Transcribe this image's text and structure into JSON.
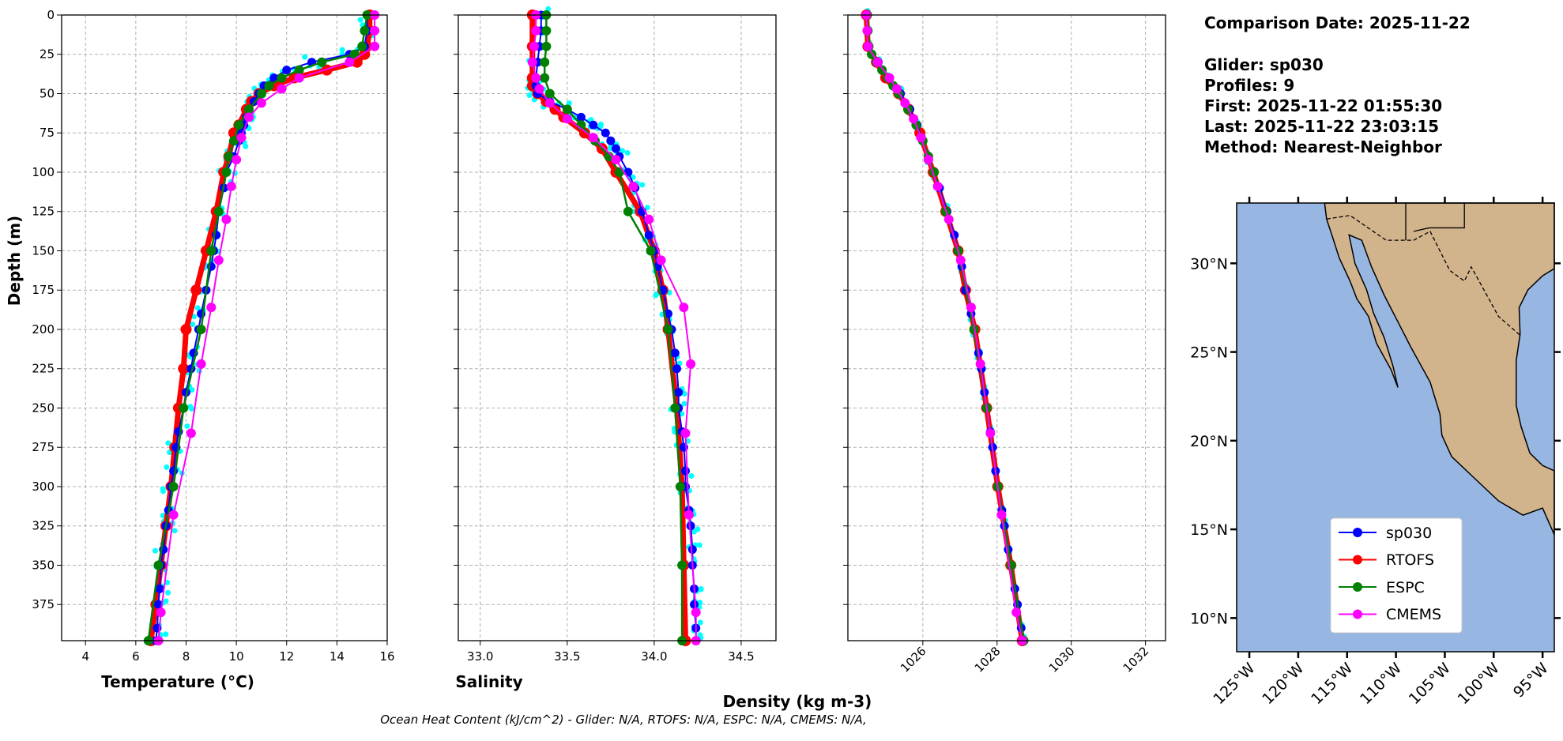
{
  "info": {
    "comparison_date": "Comparison Date: 2025-11-22",
    "glider": "Glider: sp030",
    "profiles": "Profiles: 9",
    "first": "First: 2025-11-22 01:55:30",
    "last": "Last: 2025-11-22 23:03:15",
    "method": "Method: Nearest-Neighbor"
  },
  "footer": "Ocean Heat Content (kJ/cm^2) - Glider: N/A,  RTOFS: N/A,  ESPC: N/A,  CMEMS: N/A,",
  "colors": {
    "sp030": "#0000ff",
    "RTOFS": "#ff0000",
    "ESPC": "#008000",
    "CMEMS": "#ff00ff",
    "raw": "#00ffff",
    "ocean": "#97b6e1",
    "land": "#d2b48c"
  },
  "legend": [
    "sp030",
    "RTOFS",
    "ESPC",
    "CMEMS"
  ],
  "map": {
    "lon_ticks": [
      "125°W",
      "120°W",
      "115°W",
      "110°W",
      "105°W",
      "100°W",
      "95°W"
    ],
    "lon_values": [
      -125,
      -120,
      -115,
      -110,
      -105,
      -100,
      -95
    ],
    "lat_ticks": [
      "30°N",
      "25°N",
      "20°N",
      "15°N",
      "10°N"
    ],
    "lat_values": [
      30,
      25,
      20,
      15,
      10
    ],
    "xlim": [
      -126.3,
      -93.8
    ],
    "ylim": [
      8.1,
      33.4
    ]
  },
  "chart_data": [
    {
      "type": "line",
      "xlabel": "Temperature (°C)",
      "ylabel": "Depth (m)",
      "xlim": [
        3.05,
        16.0
      ],
      "ylim": [
        398,
        0
      ],
      "xticks": [
        4,
        6,
        8,
        10,
        12,
        14,
        16
      ],
      "yticks": [
        0,
        25,
        50,
        75,
        100,
        125,
        150,
        175,
        200,
        225,
        250,
        275,
        300,
        325,
        350,
        375
      ],
      "grid": true,
      "series": [
        {
          "name": "sp030",
          "depth": [
            0,
            10,
            20,
            25,
            30,
            35,
            40,
            45,
            50,
            55,
            60,
            65,
            70,
            75,
            80,
            90,
            100,
            110,
            125,
            140,
            150,
            160,
            175,
            190,
            200,
            215,
            225,
            240,
            250,
            265,
            275,
            290,
            300,
            315,
            325,
            340,
            350,
            365,
            375,
            390,
            398
          ],
          "values": [
            15.2,
            15.2,
            15.1,
            14.5,
            13.0,
            12.0,
            11.5,
            11.1,
            10.9,
            10.7,
            10.5,
            10.4,
            10.3,
            10.2,
            10.1,
            9.9,
            9.6,
            9.5,
            9.3,
            9.2,
            9.1,
            9.0,
            8.8,
            8.6,
            8.5,
            8.3,
            8.2,
            8.0,
            7.9,
            7.7,
            7.6,
            7.5,
            7.4,
            7.3,
            7.2,
            7.1,
            7.0,
            6.95,
            6.9,
            6.85,
            6.8
          ]
        },
        {
          "name": "RTOFS",
          "depth": [
            0,
            10,
            20,
            25,
            30,
            35,
            40,
            45,
            50,
            55,
            60,
            70,
            75,
            90,
            100,
            125,
            150,
            175,
            200,
            225,
            250,
            275,
            300,
            325,
            350,
            375,
            398
          ],
          "values": [
            15.3,
            15.3,
            15.2,
            15.1,
            14.8,
            13.6,
            12.3,
            11.5,
            10.9,
            10.6,
            10.4,
            10.1,
            9.9,
            9.7,
            9.5,
            9.2,
            8.8,
            8.4,
            8.0,
            7.9,
            7.7,
            7.55,
            7.4,
            7.2,
            7.0,
            6.8,
            6.6
          ]
        },
        {
          "name": "ESPC",
          "depth": [
            0,
            10,
            20,
            25,
            30,
            35,
            40,
            45,
            50,
            60,
            70,
            80,
            90,
            100,
            125,
            150,
            200,
            250,
            300,
            350,
            398
          ],
          "values": [
            15.2,
            15.1,
            15.0,
            14.7,
            13.4,
            12.5,
            11.8,
            11.3,
            11.0,
            10.5,
            10.1,
            9.9,
            9.7,
            9.6,
            9.3,
            9.0,
            8.6,
            7.9,
            7.5,
            6.9,
            6.5
          ]
        },
        {
          "name": "CMEMS",
          "depth": [
            0,
            10,
            20,
            30,
            40,
            47,
            56,
            65,
            78,
            92,
            109,
            130,
            156,
            186,
            222,
            266,
            318,
            380,
            398
          ],
          "values": [
            15.5,
            15.5,
            15.5,
            14.5,
            12.5,
            11.8,
            11.0,
            10.5,
            10.2,
            10.0,
            9.8,
            9.6,
            9.3,
            9.0,
            8.6,
            8.2,
            7.5,
            7.0,
            6.9
          ]
        }
      ]
    },
    {
      "type": "line",
      "xlabel": "Salinity",
      "xlim": [
        32.874,
        34.7
      ],
      "ylim": [
        398,
        0
      ],
      "xticks": [
        33.0,
        33.5,
        34.0,
        34.5
      ],
      "grid": true,
      "series": [
        {
          "name": "sp030",
          "depth": [
            0,
            10,
            20,
            30,
            40,
            45,
            50,
            55,
            60,
            65,
            70,
            75,
            80,
            85,
            90,
            100,
            110,
            125,
            140,
            150,
            160,
            175,
            190,
            200,
            215,
            225,
            240,
            250,
            265,
            275,
            290,
            300,
            315,
            325,
            340,
            350,
            365,
            375,
            390,
            398
          ],
          "values": [
            33.35,
            33.35,
            33.34,
            33.33,
            33.32,
            33.32,
            33.33,
            33.4,
            33.5,
            33.58,
            33.65,
            33.72,
            33.75,
            33.78,
            33.8,
            33.85,
            33.89,
            33.93,
            33.97,
            34.0,
            34.02,
            34.05,
            34.08,
            34.1,
            34.12,
            34.13,
            34.14,
            34.14,
            34.16,
            34.17,
            34.18,
            34.18,
            34.2,
            34.21,
            34.22,
            34.22,
            34.23,
            34.23,
            34.24,
            34.24
          ]
        },
        {
          "name": "RTOFS",
          "depth": [
            0,
            20,
            40,
            45,
            50,
            55,
            60,
            65,
            75,
            85,
            100,
            125,
            150,
            175,
            200,
            250,
            300,
            350,
            398
          ],
          "values": [
            33.3,
            33.3,
            33.3,
            33.3,
            33.33,
            33.38,
            33.43,
            33.48,
            33.6,
            33.7,
            33.78,
            33.92,
            34.0,
            34.05,
            34.08,
            34.13,
            34.16,
            34.17,
            34.18
          ]
        },
        {
          "name": "ESPC",
          "depth": [
            0,
            10,
            20,
            30,
            40,
            50,
            60,
            70,
            80,
            90,
            100,
            125,
            150,
            200,
            250,
            300,
            350,
            398
          ],
          "values": [
            33.38,
            33.38,
            33.38,
            33.37,
            33.37,
            33.4,
            33.5,
            33.58,
            33.66,
            33.74,
            33.8,
            33.85,
            33.98,
            34.08,
            34.12,
            34.15,
            34.16,
            34.16
          ]
        },
        {
          "name": "CMEMS",
          "depth": [
            0,
            10,
            20,
            30,
            40,
            47,
            56,
            66,
            78,
            92,
            109,
            130,
            156,
            186,
            222,
            266,
            318,
            380,
            398
          ],
          "values": [
            33.32,
            33.32,
            33.31,
            33.3,
            33.32,
            33.34,
            33.4,
            33.5,
            33.65,
            33.78,
            33.88,
            33.97,
            34.04,
            34.17,
            34.21,
            34.18,
            34.2,
            34.24,
            34.24
          ]
        }
      ]
    },
    {
      "type": "line",
      "xlabel": "Density (kg m-3)",
      "xlim": [
        1023.98,
        1032.54
      ],
      "ylim": [
        398,
        0
      ],
      "xticks": [
        1026,
        1028,
        1030,
        1032
      ],
      "grid": true,
      "series": [
        {
          "name": "sp030",
          "depth": [
            0,
            10,
            20,
            30,
            40,
            50,
            60,
            70,
            80,
            90,
            100,
            110,
            125,
            140,
            150,
            160,
            175,
            190,
            200,
            215,
            225,
            240,
            250,
            265,
            275,
            290,
            300,
            315,
            325,
            340,
            350,
            365,
            375,
            390,
            398
          ],
          "values": [
            1024.5,
            1024.52,
            1024.55,
            1024.8,
            1025.1,
            1025.4,
            1025.65,
            1025.85,
            1026.0,
            1026.15,
            1026.3,
            1026.45,
            1026.65,
            1026.85,
            1026.95,
            1027.05,
            1027.15,
            1027.3,
            1027.38,
            1027.5,
            1027.58,
            1027.66,
            1027.72,
            1027.82,
            1027.88,
            1027.96,
            1028.02,
            1028.13,
            1028.2,
            1028.3,
            1028.38,
            1028.48,
            1028.55,
            1028.65,
            1028.7
          ]
        },
        {
          "name": "RTOFS",
          "depth": [
            0,
            20,
            30,
            40,
            50,
            60,
            75,
            100,
            125,
            150,
            175,
            200,
            250,
            300,
            350,
            398
          ],
          "values": [
            1024.48,
            1024.52,
            1024.75,
            1025.0,
            1025.35,
            1025.62,
            1025.92,
            1026.28,
            1026.62,
            1026.95,
            1027.15,
            1027.4,
            1027.72,
            1028.02,
            1028.37,
            1028.68
          ]
        },
        {
          "name": "ESPC",
          "depth": [
            0,
            10,
            20,
            25,
            30,
            35,
            40,
            45,
            50,
            60,
            70,
            80,
            90,
            100,
            125,
            150,
            200,
            250,
            300,
            350,
            398
          ],
          "values": [
            1024.5,
            1024.52,
            1024.54,
            1024.62,
            1024.75,
            1024.9,
            1025.05,
            1025.2,
            1025.35,
            1025.6,
            1025.82,
            1026.0,
            1026.15,
            1026.3,
            1026.62,
            1026.95,
            1027.38,
            1027.72,
            1028.02,
            1028.38,
            1028.72
          ]
        },
        {
          "name": "CMEMS",
          "depth": [
            0,
            10,
            20,
            30,
            40,
            47,
            56,
            66,
            78,
            92,
            109,
            130,
            156,
            186,
            222,
            266,
            318,
            380,
            398
          ],
          "values": [
            1024.48,
            1024.5,
            1024.52,
            1024.78,
            1025.1,
            1025.3,
            1025.52,
            1025.75,
            1025.95,
            1026.15,
            1026.4,
            1026.7,
            1027.02,
            1027.3,
            1027.55,
            1027.82,
            1028.12,
            1028.52,
            1028.68
          ]
        }
      ]
    }
  ]
}
